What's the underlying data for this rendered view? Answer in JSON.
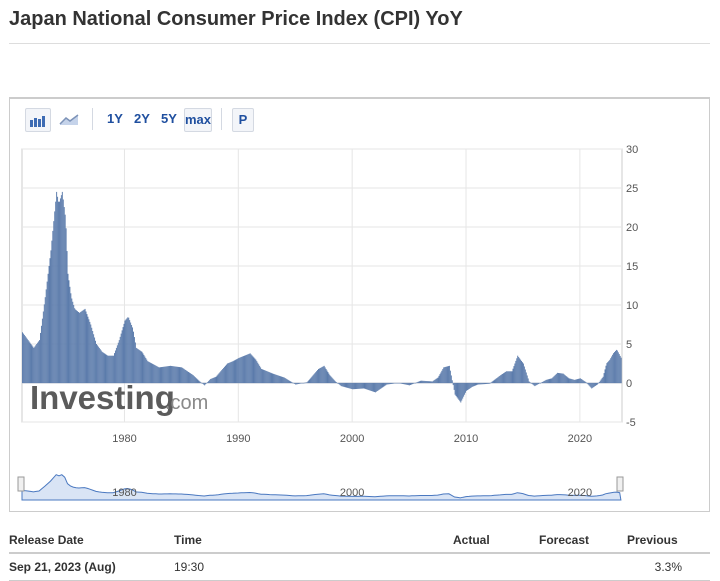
{
  "page": {
    "title": "Japan National Consumer Price Index (CPI) YoY"
  },
  "toolbar": {
    "bar_icon": "bar-chart-icon",
    "area_icon": "area-chart-icon",
    "ranges": [
      "1Y",
      "2Y",
      "5Y",
      "max"
    ],
    "active_range": "max",
    "p_label": "P"
  },
  "watermark": {
    "brand": "Investing",
    "suffix": ".com"
  },
  "chart_data": {
    "type": "bar",
    "title": "",
    "xlabel": "",
    "ylabel": "",
    "x_ticks": [
      "1980",
      "1990",
      "2000",
      "2010",
      "2020"
    ],
    "y_ticks": [
      "30",
      "25",
      "20",
      "15",
      "10",
      "5",
      "0",
      "-5"
    ],
    "ylim": [
      -5,
      30
    ],
    "xlim": [
      1971,
      2023.7
    ],
    "grid": true,
    "y_axis_side": "right",
    "color": "#5b7bab",
    "x": [
      1971.0,
      1972.0,
      1972.5,
      1973.0,
      1973.5,
      1974.0,
      1974.2,
      1974.5,
      1974.8,
      1975.0,
      1975.3,
      1975.6,
      1976.0,
      1976.5,
      1977.0,
      1977.5,
      1978.0,
      1978.5,
      1979.0,
      1979.5,
      1980.0,
      1980.3,
      1980.7,
      1981.0,
      1981.5,
      1982.0,
      1983.0,
      1984.0,
      1985.0,
      1986.0,
      1986.5,
      1987.0,
      1987.5,
      1988.0,
      1989.0,
      1989.5,
      1990.0,
      1990.5,
      1991.0,
      1991.5,
      1992.0,
      1993.0,
      1994.0,
      1995.0,
      1996.0,
      1997.0,
      1997.5,
      1998.0,
      1998.5,
      1999.0,
      2000.0,
      2001.0,
      2002.0,
      2003.0,
      2004.0,
      2005.0,
      2006.0,
      2007.0,
      2007.5,
      2008.0,
      2008.5,
      2009.0,
      2009.5,
      2010.0,
      2010.5,
      2011.0,
      2012.0,
      2013.0,
      2013.5,
      2014.0,
      2014.5,
      2015.0,
      2015.5,
      2016.0,
      2017.0,
      2017.5,
      2018.0,
      2018.5,
      2019.0,
      2019.5,
      2020.0,
      2020.5,
      2021.0,
      2021.5,
      2022.0,
      2022.3,
      2022.6,
      2022.9,
      2023.2,
      2023.6
    ],
    "values": [
      6.5,
      4.5,
      5.5,
      11.0,
      17.0,
      24.5,
      23.0,
      24.5,
      21.0,
      14.0,
      11.0,
      9.5,
      9.0,
      9.5,
      7.5,
      5.0,
      4.0,
      3.5,
      3.5,
      5.5,
      8.0,
      8.5,
      7.0,
      4.5,
      4.0,
      2.8,
      2.0,
      2.2,
      2.0,
      1.0,
      0.3,
      -0.3,
      0.5,
      0.8,
      2.5,
      2.8,
      3.2,
      3.5,
      3.8,
      3.0,
      1.8,
      1.2,
      0.7,
      -0.2,
      0.1,
      1.8,
      2.2,
      1.0,
      0.2,
      -0.4,
      -0.8,
      -0.7,
      -1.2,
      -0.2,
      0.0,
      -0.3,
      0.3,
      0.2,
      0.7,
      2.0,
      2.2,
      -1.5,
      -2.5,
      -1.0,
      -0.5,
      -0.2,
      -0.1,
      1.0,
      1.5,
      1.5,
      3.5,
      2.5,
      0.2,
      -0.4,
      0.4,
      0.6,
      1.3,
      1.2,
      0.6,
      0.4,
      0.6,
      0.1,
      -0.7,
      -0.2,
      0.8,
      2.5,
      3.0,
      3.8,
      4.3,
      3.2
    ]
  },
  "table": {
    "headers": {
      "date": "Release Date",
      "time": "Time",
      "actual": "Actual",
      "forecast": "Forecast",
      "previous": "Previous"
    },
    "rows": [
      {
        "date": "Sep 21, 2023 (Aug)",
        "time": "19:30",
        "actual": "",
        "forecast": "",
        "previous": "3.3%"
      }
    ]
  }
}
